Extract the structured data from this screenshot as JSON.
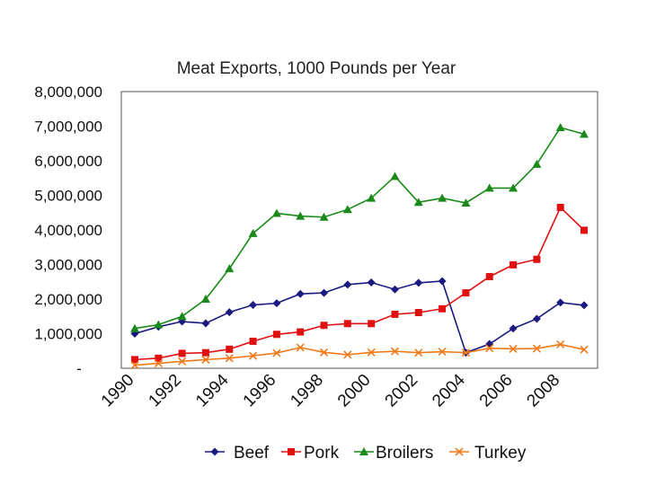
{
  "chart_data": {
    "type": "line",
    "title": "Meat Exports, 1000 Pounds per Year",
    "xlabel": "",
    "ylabel": "",
    "x": [
      1990,
      1991,
      1992,
      1993,
      1994,
      1995,
      1996,
      1997,
      1998,
      1999,
      2000,
      2001,
      2002,
      2003,
      2004,
      2005,
      2006,
      2007,
      2008,
      2009
    ],
    "x_tick_labels": [
      "1990",
      "1992",
      "1994",
      "1996",
      "1998",
      "2000",
      "2002",
      "2004",
      "2006",
      "2008"
    ],
    "ylim": [
      0,
      8000000
    ],
    "y_tick_labels": [
      "8,000,000",
      "7,000,000",
      "6,000,000",
      "5,000,000",
      "4,000,000",
      "3,000,000",
      "2,000,000",
      "1,000,000",
      "-"
    ],
    "legend_position": "bottom",
    "grid": false,
    "series": [
      {
        "name": "Beef",
        "color": "#1a1a80",
        "marker": "diamond",
        "values": [
          1000000,
          1200000,
          1350000,
          1300000,
          1620000,
          1830000,
          1880000,
          2150000,
          2180000,
          2420000,
          2480000,
          2280000,
          2470000,
          2520000,
          450000,
          700000,
          1150000,
          1430000,
          1900000,
          1820000
        ]
      },
      {
        "name": "Pork",
        "color": "#e01010",
        "marker": "square",
        "values": [
          250000,
          290000,
          430000,
          450000,
          550000,
          780000,
          980000,
          1050000,
          1240000,
          1290000,
          1290000,
          1560000,
          1610000,
          1720000,
          2180000,
          2650000,
          2990000,
          3150000,
          4650000,
          3990000
        ]
      },
      {
        "name": "Broilers",
        "color": "#1a8a1a",
        "marker": "triangle",
        "values": [
          1150000,
          1260000,
          1500000,
          2000000,
          2880000,
          3900000,
          4480000,
          4400000,
          4370000,
          4590000,
          4920000,
          5550000,
          4800000,
          4920000,
          4780000,
          5210000,
          5210000,
          5900000,
          6960000,
          6770000
        ]
      },
      {
        "name": "Turkey",
        "color": "#f07a1a",
        "marker": "x",
        "values": [
          90000,
          140000,
          200000,
          250000,
          290000,
          360000,
          440000,
          600000,
          460000,
          390000,
          460000,
          490000,
          450000,
          480000,
          450000,
          580000,
          560000,
          570000,
          690000,
          540000
        ]
      }
    ]
  }
}
